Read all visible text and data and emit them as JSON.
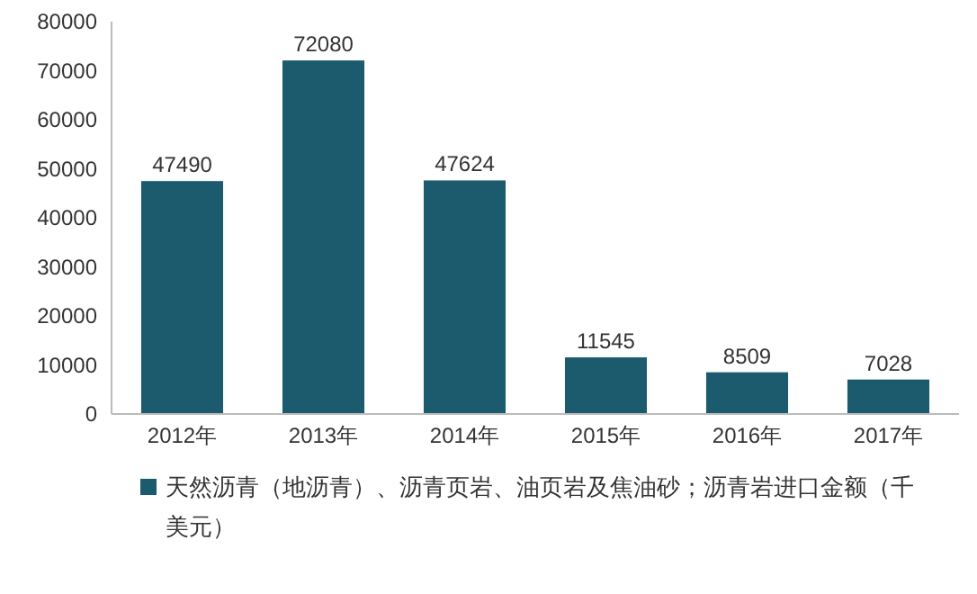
{
  "chart_data": {
    "type": "bar",
    "categories": [
      "2012年",
      "2013年",
      "2014年",
      "2015年",
      "2016年",
      "2017年"
    ],
    "series": [
      {
        "name": "天然沥青（地沥青）、沥青页岩、油页岩及焦油砂；沥青岩进口金额（千美元）",
        "color": "#1c5a6e",
        "values": [
          47490,
          72080,
          47624,
          11545,
          8509,
          7028
        ]
      }
    ],
    "ylim": [
      0,
      80000
    ],
    "yticks": [
      0,
      10000,
      20000,
      30000,
      40000,
      50000,
      60000,
      70000,
      80000
    ],
    "grid": false,
    "data_labels": true,
    "legend": "bottom"
  }
}
